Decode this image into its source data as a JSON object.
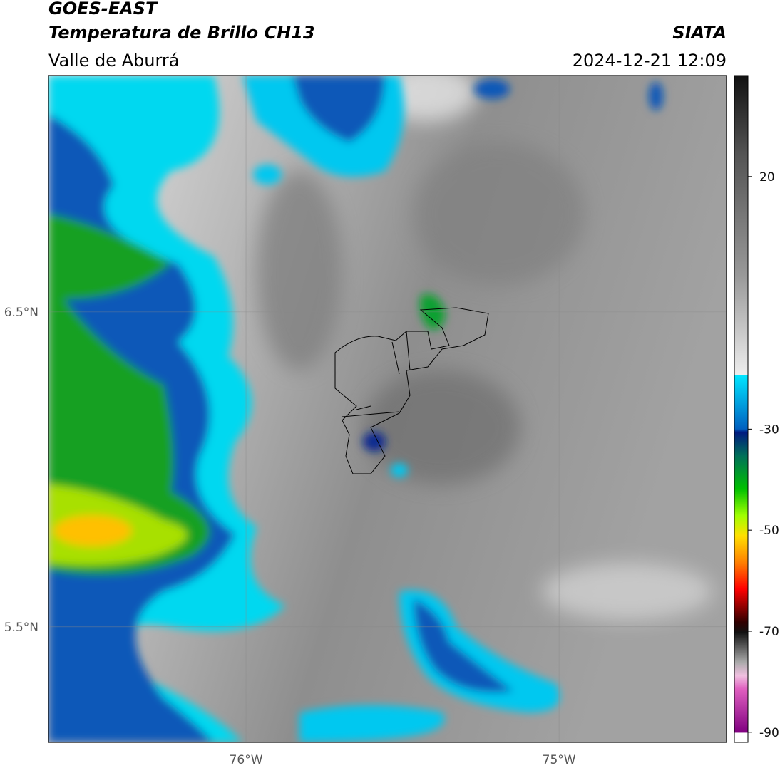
{
  "header": {
    "title": "GOES-EAST",
    "subtitle": "Temperatura de Brillo CH13",
    "region": "Valle de Aburrá",
    "source": "SIATA",
    "timestamp": "2024-12-21 12:09"
  },
  "map": {
    "xlim": [
      -76.631,
      -74.465
    ],
    "ylim": [
      5.133,
      7.251
    ],
    "xticks": [
      {
        "value": -76,
        "label": "76°W"
      },
      {
        "value": -75,
        "label": "75°W"
      }
    ],
    "yticks": [
      {
        "value": 6.5,
        "label": "6.5°N"
      },
      {
        "value": 5.5,
        "label": "5.5°N"
      }
    ]
  },
  "colorbar": {
    "lim": [
      -92,
      40
    ],
    "ticks": [
      20,
      -30,
      -50,
      -70,
      -90
    ]
  }
}
